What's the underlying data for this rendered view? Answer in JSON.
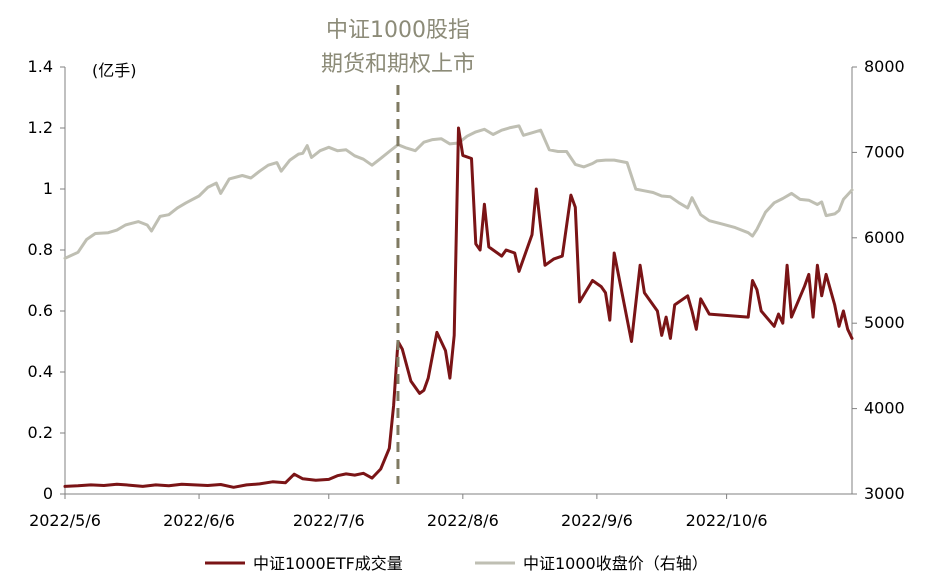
{
  "chart_data": {
    "type": "line",
    "unit_label_left": "(亿手)",
    "annotation": [
      "中证1000股指",
      "期货和期权上市"
    ],
    "annotation_date": "2022-07-22",
    "x_range": [
      "2022-05-06",
      "2022-11-04"
    ],
    "x_ticks": [
      {
        "date": "2022-05-06",
        "label": "2022/5/6"
      },
      {
        "date": "2022-06-06",
        "label": "2022/6/6"
      },
      {
        "date": "2022-07-06",
        "label": "2022/7/6"
      },
      {
        "date": "2022-08-06",
        "label": "2022/8/6"
      },
      {
        "date": "2022-09-06",
        "label": "2022/9/6"
      },
      {
        "date": "2022-10-06",
        "label": "2022/10/6"
      }
    ],
    "y_left": {
      "min": 0,
      "max": 1.4,
      "ticks": [
        "0",
        "0.2",
        "0.4",
        "0.6",
        "0.8",
        "1",
        "1.2",
        "1.4"
      ]
    },
    "y_right": {
      "min": 3000,
      "max": 8000,
      "ticks": [
        "3000",
        "4000",
        "5000",
        "6000",
        "7000",
        "8000"
      ]
    },
    "series": [
      {
        "name": "中证1000ETF成交量",
        "axis": "left",
        "color": "#7a1416",
        "points": [
          [
            "2022-05-06",
            0.025
          ],
          [
            "2022-05-09",
            0.027
          ],
          [
            "2022-05-12",
            0.03
          ],
          [
            "2022-05-15",
            0.028
          ],
          [
            "2022-05-18",
            0.032
          ],
          [
            "2022-05-21",
            0.029
          ],
          [
            "2022-05-24",
            0.025
          ],
          [
            "2022-05-27",
            0.03
          ],
          [
            "2022-05-30",
            0.027
          ],
          [
            "2022-06-02",
            0.032
          ],
          [
            "2022-06-05",
            0.03
          ],
          [
            "2022-06-08",
            0.028
          ],
          [
            "2022-06-11",
            0.031
          ],
          [
            "2022-06-14",
            0.022
          ],
          [
            "2022-06-17",
            0.03
          ],
          [
            "2022-06-20",
            0.033
          ],
          [
            "2022-06-23",
            0.04
          ],
          [
            "2022-06-26",
            0.037
          ],
          [
            "2022-06-28",
            0.065
          ],
          [
            "2022-06-30",
            0.05
          ],
          [
            "2022-07-03",
            0.045
          ],
          [
            "2022-07-06",
            0.048
          ],
          [
            "2022-07-08",
            0.06
          ],
          [
            "2022-07-10",
            0.066
          ],
          [
            "2022-07-12",
            0.062
          ],
          [
            "2022-07-14",
            0.068
          ],
          [
            "2022-07-16",
            0.052
          ],
          [
            "2022-07-18",
            0.082
          ],
          [
            "2022-07-20",
            0.15
          ],
          [
            "2022-07-21",
            0.29
          ],
          [
            "2022-07-22",
            0.5
          ],
          [
            "2022-07-23",
            0.475
          ],
          [
            "2022-07-25",
            0.37
          ],
          [
            "2022-07-27",
            0.33
          ],
          [
            "2022-07-28",
            0.34
          ],
          [
            "2022-07-29",
            0.38
          ],
          [
            "2022-07-31",
            0.53
          ],
          [
            "2022-08-02",
            0.47
          ],
          [
            "2022-08-03",
            0.38
          ],
          [
            "2022-08-04",
            0.52
          ],
          [
            "2022-08-05",
            1.2
          ],
          [
            "2022-08-06",
            1.11
          ],
          [
            "2022-08-08",
            1.1
          ],
          [
            "2022-08-09",
            0.82
          ],
          [
            "2022-08-10",
            0.8
          ],
          [
            "2022-08-11",
            0.95
          ],
          [
            "2022-08-12",
            0.81
          ],
          [
            "2022-08-15",
            0.78
          ],
          [
            "2022-08-16",
            0.8
          ],
          [
            "2022-08-18",
            0.79
          ],
          [
            "2022-08-19",
            0.73
          ],
          [
            "2022-08-22",
            0.85
          ],
          [
            "2022-08-23",
            1.0
          ],
          [
            "2022-08-25",
            0.75
          ],
          [
            "2022-08-27",
            0.77
          ],
          [
            "2022-08-29",
            0.78
          ],
          [
            "2022-08-31",
            0.98
          ],
          [
            "2022-09-01",
            0.94
          ],
          [
            "2022-09-02",
            0.63
          ],
          [
            "2022-09-05",
            0.7
          ],
          [
            "2022-09-07",
            0.68
          ],
          [
            "2022-09-08",
            0.66
          ],
          [
            "2022-09-09",
            0.57
          ],
          [
            "2022-09-10",
            0.79
          ],
          [
            "2022-09-14",
            0.5
          ],
          [
            "2022-09-16",
            0.75
          ],
          [
            "2022-09-17",
            0.66
          ],
          [
            "2022-09-20",
            0.6
          ],
          [
            "2022-09-21",
            0.52
          ],
          [
            "2022-09-22",
            0.58
          ],
          [
            "2022-09-23",
            0.51
          ],
          [
            "2022-09-24",
            0.62
          ],
          [
            "2022-09-27",
            0.65
          ],
          [
            "2022-09-28",
            0.6
          ],
          [
            "2022-09-29",
            0.54
          ],
          [
            "2022-09-30",
            0.64
          ],
          [
            "2022-10-02",
            0.59
          ],
          [
            "2022-10-11",
            0.58
          ],
          [
            "2022-10-12",
            0.7
          ],
          [
            "2022-10-13",
            0.67
          ],
          [
            "2022-10-14",
            0.6
          ],
          [
            "2022-10-17",
            0.55
          ],
          [
            "2022-10-18",
            0.59
          ],
          [
            "2022-10-19",
            0.56
          ],
          [
            "2022-10-20",
            0.75
          ],
          [
            "2022-10-21",
            0.58
          ],
          [
            "2022-10-24",
            0.68
          ],
          [
            "2022-10-25",
            0.72
          ],
          [
            "2022-10-26",
            0.58
          ],
          [
            "2022-10-27",
            0.75
          ],
          [
            "2022-10-28",
            0.65
          ],
          [
            "2022-10-29",
            0.72
          ],
          [
            "2022-10-31",
            0.62
          ],
          [
            "2022-11-01",
            0.55
          ],
          [
            "2022-11-02",
            0.6
          ],
          [
            "2022-11-03",
            0.54
          ],
          [
            "2022-11-04",
            0.51
          ]
        ]
      },
      {
        "name": "中证1000收盘价（右轴）",
        "axis": "right",
        "color": "#bfbfb3",
        "points": [
          [
            "2022-05-06",
            5760
          ],
          [
            "2022-05-09",
            5830
          ],
          [
            "2022-05-11",
            5980
          ],
          [
            "2022-05-13",
            6050
          ],
          [
            "2022-05-16",
            6060
          ],
          [
            "2022-05-18",
            6090
          ],
          [
            "2022-05-20",
            6150
          ],
          [
            "2022-05-23",
            6190
          ],
          [
            "2022-05-25",
            6150
          ],
          [
            "2022-05-26",
            6080
          ],
          [
            "2022-05-28",
            6250
          ],
          [
            "2022-05-30",
            6270
          ],
          [
            "2022-06-01",
            6350
          ],
          [
            "2022-06-03",
            6410
          ],
          [
            "2022-06-06",
            6490
          ],
          [
            "2022-06-08",
            6590
          ],
          [
            "2022-06-10",
            6640
          ],
          [
            "2022-06-11",
            6520
          ],
          [
            "2022-06-13",
            6690
          ],
          [
            "2022-06-16",
            6730
          ],
          [
            "2022-06-18",
            6700
          ],
          [
            "2022-06-20",
            6780
          ],
          [
            "2022-06-22",
            6850
          ],
          [
            "2022-06-24",
            6880
          ],
          [
            "2022-06-25",
            6780
          ],
          [
            "2022-06-27",
            6910
          ],
          [
            "2022-06-29",
            6980
          ],
          [
            "2022-06-30",
            6990
          ],
          [
            "2022-07-01",
            7080
          ],
          [
            "2022-07-02",
            6940
          ],
          [
            "2022-07-04",
            7020
          ],
          [
            "2022-07-06",
            7060
          ],
          [
            "2022-07-08",
            7020
          ],
          [
            "2022-07-10",
            7030
          ],
          [
            "2022-07-12",
            6960
          ],
          [
            "2022-07-14",
            6920
          ],
          [
            "2022-07-16",
            6850
          ],
          [
            "2022-07-18",
            6930
          ],
          [
            "2022-07-20",
            7010
          ],
          [
            "2022-07-22",
            7090
          ],
          [
            "2022-07-24",
            7050
          ],
          [
            "2022-07-26",
            7020
          ],
          [
            "2022-07-28",
            7120
          ],
          [
            "2022-07-30",
            7150
          ],
          [
            "2022-08-01",
            7160
          ],
          [
            "2022-08-03",
            7100
          ],
          [
            "2022-08-05",
            7110
          ],
          [
            "2022-08-07",
            7190
          ],
          [
            "2022-08-09",
            7240
          ],
          [
            "2022-08-11",
            7270
          ],
          [
            "2022-08-13",
            7210
          ],
          [
            "2022-08-15",
            7260
          ],
          [
            "2022-08-17",
            7290
          ],
          [
            "2022-08-19",
            7310
          ],
          [
            "2022-08-20",
            7200
          ],
          [
            "2022-08-22",
            7230
          ],
          [
            "2022-08-24",
            7260
          ],
          [
            "2022-08-26",
            7030
          ],
          [
            "2022-08-28",
            7010
          ],
          [
            "2022-08-30",
            7010
          ],
          [
            "2022-09-01",
            6860
          ],
          [
            "2022-09-03",
            6830
          ],
          [
            "2022-09-05",
            6870
          ],
          [
            "2022-09-06",
            6900
          ],
          [
            "2022-09-08",
            6910
          ],
          [
            "2022-09-10",
            6910
          ],
          [
            "2022-09-13",
            6880
          ],
          [
            "2022-09-15",
            6570
          ],
          [
            "2022-09-17",
            6550
          ],
          [
            "2022-09-19",
            6530
          ],
          [
            "2022-09-21",
            6490
          ],
          [
            "2022-09-23",
            6480
          ],
          [
            "2022-09-25",
            6410
          ],
          [
            "2022-09-27",
            6350
          ],
          [
            "2022-09-28",
            6470
          ],
          [
            "2022-09-30",
            6270
          ],
          [
            "2022-10-02",
            6200
          ],
          [
            "2022-10-05",
            6160
          ],
          [
            "2022-10-08",
            6120
          ],
          [
            "2022-10-11",
            6060
          ],
          [
            "2022-10-12",
            6020
          ],
          [
            "2022-10-13",
            6100
          ],
          [
            "2022-10-15",
            6300
          ],
          [
            "2022-10-17",
            6410
          ],
          [
            "2022-10-19",
            6460
          ],
          [
            "2022-10-21",
            6520
          ],
          [
            "2022-10-23",
            6450
          ],
          [
            "2022-10-25",
            6440
          ],
          [
            "2022-10-27",
            6390
          ],
          [
            "2022-10-28",
            6420
          ],
          [
            "2022-10-29",
            6260
          ],
          [
            "2022-10-31",
            6280
          ],
          [
            "2022-11-01",
            6320
          ],
          [
            "2022-11-02",
            6450
          ],
          [
            "2022-11-04",
            6560
          ]
        ]
      }
    ],
    "legend": {
      "position": "bottom",
      "items": [
        {
          "label": "中证1000ETF成交量",
          "color": "#7a1416"
        },
        {
          "label": "中证1000收盘价（右轴）",
          "color": "#bfbfb3"
        }
      ]
    },
    "grid": false
  }
}
